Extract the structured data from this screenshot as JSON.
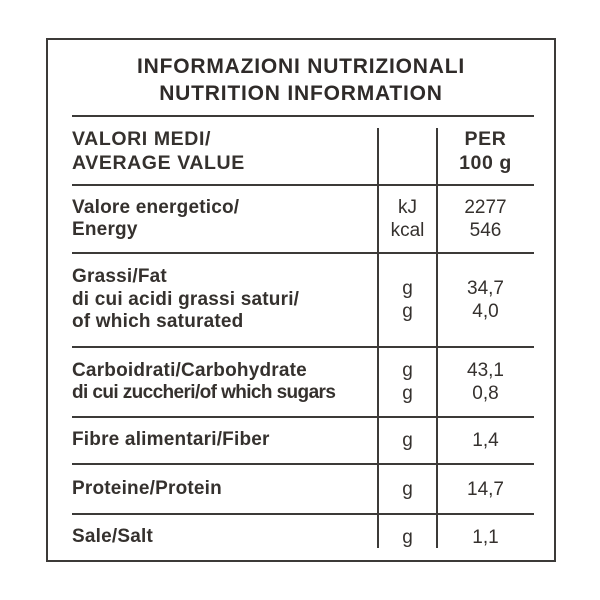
{
  "title": {
    "line1": "INFORMAZIONI NUTRIZIONALI",
    "line2": "NUTRITION INFORMATION"
  },
  "table": {
    "header": {
      "label_line1": "VALORI MEDI/",
      "label_line2": "AVERAGE VALUE",
      "per_line1": "PER",
      "per_line2": "100 g"
    },
    "rows": [
      {
        "name": "energy",
        "label_lines": [
          "Valore energetico/",
          "Energy"
        ],
        "units": [
          "kJ",
          "kcal"
        ],
        "values": [
          "2277",
          "546"
        ]
      },
      {
        "name": "fat",
        "label_lines": [
          "Grassi/Fat",
          "di cui acidi grassi saturi/",
          "of which saturated"
        ],
        "units": [
          "g",
          "g"
        ],
        "values": [
          "34,7",
          "4,0"
        ]
      },
      {
        "name": "carbohydrate",
        "label_lines": [
          "Carboidrati/Carbohydrate",
          "di cui zuccheri/of which sugars"
        ],
        "units": [
          "g",
          "g"
        ],
        "values": [
          "43,1",
          "0,8"
        ]
      },
      {
        "name": "fiber",
        "label_lines": [
          "Fibre alimentari/Fiber"
        ],
        "units": [
          "g"
        ],
        "values": [
          "1,4"
        ]
      },
      {
        "name": "protein",
        "label_lines": [
          "Proteine/Protein"
        ],
        "units": [
          "g"
        ],
        "values": [
          "14,7"
        ]
      },
      {
        "name": "salt",
        "label_lines": [
          "Sale/Salt"
        ],
        "units": [
          "g"
        ],
        "values": [
          "1,1"
        ]
      }
    ]
  },
  "colors": {
    "text": "#2f2b29",
    "line": "#3c3a38",
    "background": "#ffffff"
  }
}
